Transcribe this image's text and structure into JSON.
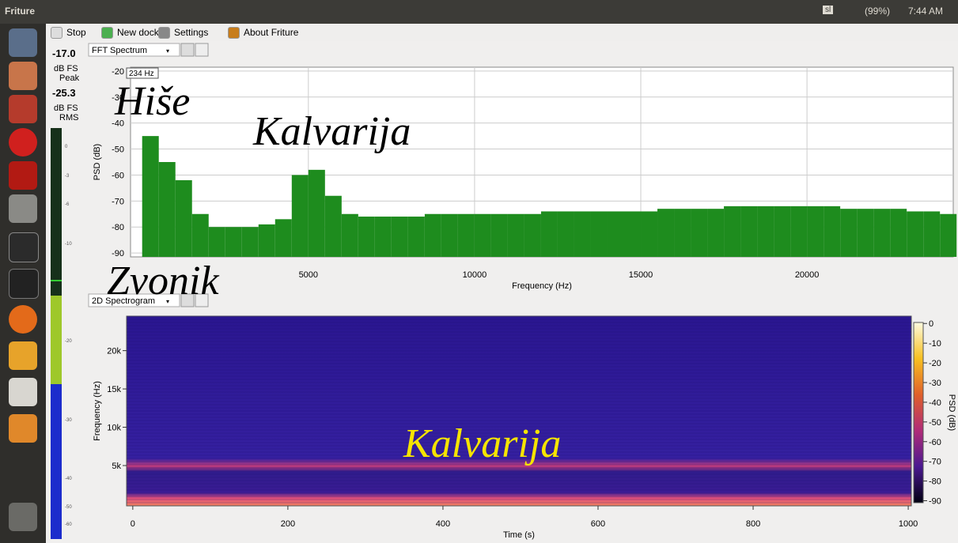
{
  "topbar": {
    "app": "Friture",
    "keyboard": "sl",
    "battery": "(99%)",
    "time": "7:44 AM"
  },
  "toolbar": {
    "items": [
      "Stop",
      "New dock",
      "Settings",
      "About Friture"
    ]
  },
  "level_meter": {
    "peak": {
      "value": "-17.0",
      "unit": "dB FS",
      "label": "Peak"
    },
    "rms": {
      "value": "-25.3",
      "unit": "dB FS",
      "label": "RMS"
    },
    "scale": [
      0,
      -3,
      -6,
      -10,
      -20,
      -30,
      -40,
      -50,
      -60
    ]
  },
  "annotations": [
    "Hiše",
    "Kalvarija",
    "Zvonik",
    "Kalvarija"
  ],
  "chart_data": [
    {
      "type": "bar",
      "dock": "FFT Spectrum",
      "marker": "234 Hz",
      "x_label": "Frequency (Hz)",
      "y_label": "PSD (dB)",
      "color": "#1e8c1e",
      "x": [
        0,
        500,
        1000,
        1500,
        2000,
        2500,
        3000,
        3500,
        4000,
        4500,
        5000,
        5500,
        6000,
        6500,
        7000,
        7500,
        8000,
        8500,
        9000,
        9500,
        10000,
        10500,
        11000,
        11500,
        12000,
        12500,
        13000,
        13500,
        14000,
        14500,
        15000,
        15500,
        16000,
        16500,
        17000,
        17500,
        18000,
        18500,
        19000,
        19500,
        20000,
        20500,
        21000,
        21500,
        22000,
        22500,
        23000,
        23500,
        24000
      ],
      "values": [
        -45,
        -55,
        -62,
        -75,
        -80,
        -80,
        -80,
        -79,
        -77,
        -60,
        -58,
        -68,
        -75,
        -76,
        -76,
        -76,
        -76,
        -75,
        -75,
        -75,
        -75,
        -75,
        -75,
        -75,
        -74,
        -74,
        -74,
        -74,
        -74,
        -74,
        -74,
        -73,
        -73,
        -73,
        -73,
        -72,
        -72,
        -72,
        -72,
        -72,
        -72,
        -72,
        -73,
        -73,
        -73,
        -73,
        -74,
        -74,
        -75
      ],
      "xlim": [
        -350,
        24400
      ],
      "ylim": [
        -91.5,
        -18.5
      ],
      "xticks": [
        5000,
        10000,
        15000,
        20000
      ],
      "yticks": [
        -20,
        -30,
        -40,
        -50,
        -60,
        -70,
        -80,
        -90
      ],
      "grid": true
    },
    {
      "type": "heatmap",
      "dock": "2D Spectrogram",
      "x_label": "Time (s)",
      "y_label": "Frequency (Hz)",
      "colorbar_label": "PSD (dB)",
      "xlim": [
        -8,
        1004
      ],
      "ylim": [
        -260,
        24500
      ],
      "xticks": [
        0,
        200,
        400,
        600,
        800,
        1000
      ],
      "yticks": [
        {
          "value": 5000,
          "label": "5k"
        },
        {
          "value": 10000,
          "label": "10k"
        },
        {
          "value": 15000,
          "label": "15k"
        },
        {
          "value": 20000,
          "label": "20k"
        }
      ],
      "clim": [
        -91,
        0.5
      ],
      "cticks": [
        0,
        -10,
        -20,
        -30,
        -40,
        -50,
        -60,
        -70,
        -80,
        -90
      ]
    }
  ]
}
